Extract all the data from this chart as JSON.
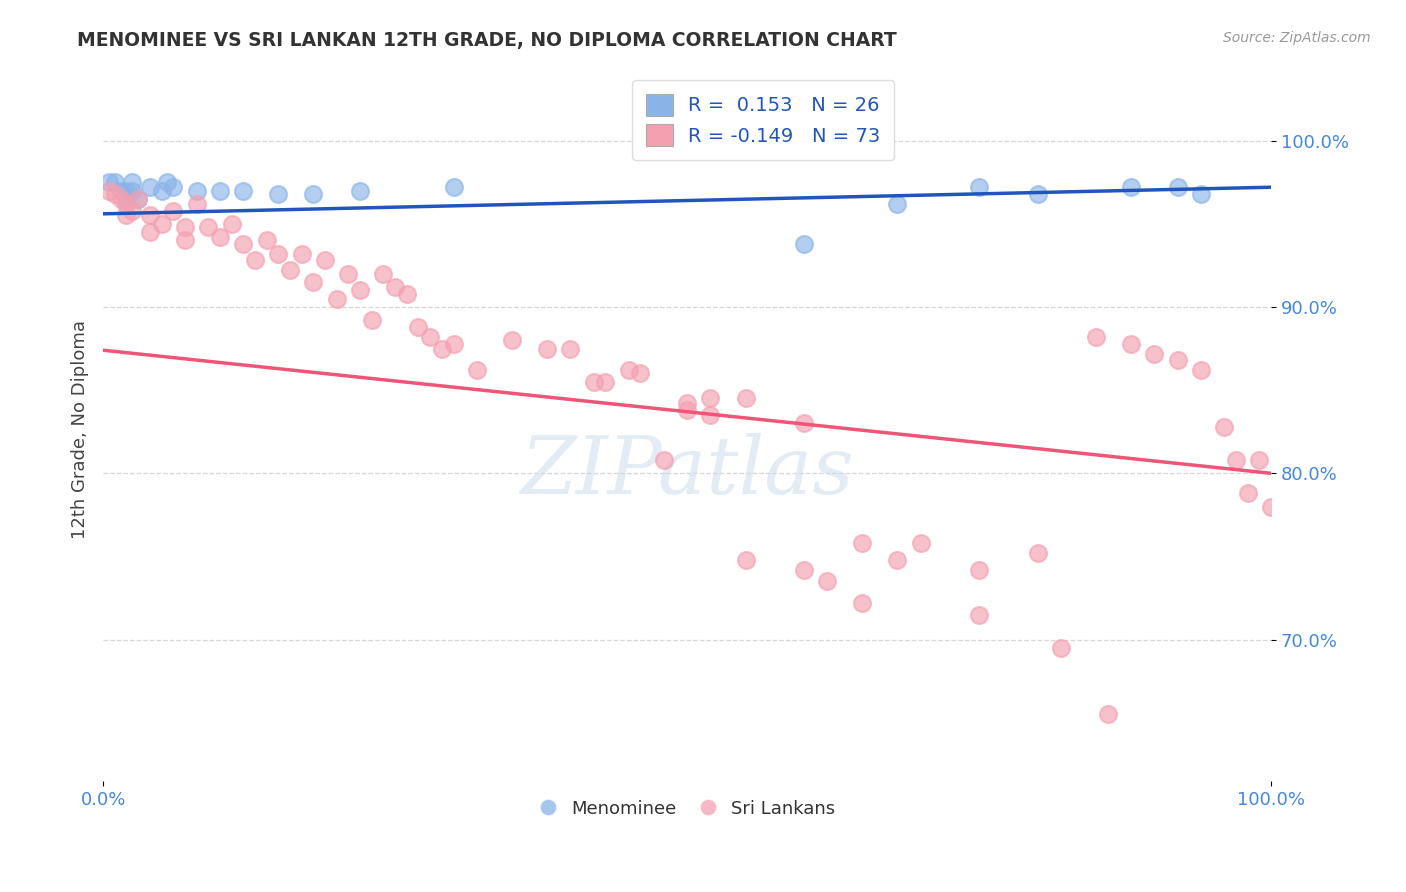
{
  "title": "MENOMINEE VS SRI LANKAN 12TH GRADE, NO DIPLOMA CORRELATION CHART",
  "source_text": "Source: ZipAtlas.com",
  "ylabel": "12th Grade, No Diploma",
  "xlim": [
    0.0,
    1.0
  ],
  "ylim": [
    0.615,
    1.038
  ],
  "yticks": [
    0.7,
    0.8,
    0.9,
    1.0
  ],
  "ytick_labels": [
    "70.0%",
    "80.0%",
    "90.0%",
    "100.0%"
  ],
  "xticks": [
    0.0,
    1.0
  ],
  "xtick_labels": [
    "0.0%",
    "100.0%"
  ],
  "legend_label_blue": "Menominee",
  "legend_label_pink": "Sri Lankans",
  "legend_r_blue": "R =  0.153",
  "legend_n_blue": "N = 26",
  "legend_r_pink": "R = -0.149",
  "legend_n_pink": "N = 73",
  "blue_color": "#8AB4E8",
  "pink_color": "#F4A0B0",
  "blue_line_color": "#2255BB",
  "pink_line_color": "#EE5577",
  "watermark": "ZIPatlas",
  "blue_line_x0": 0.0,
  "blue_line_y0": 0.956,
  "blue_line_x1": 1.0,
  "blue_line_y1": 0.972,
  "pink_line_x0": 0.0,
  "pink_line_y0": 0.874,
  "pink_line_x1": 1.0,
  "pink_line_y1": 0.8,
  "menominee_x": [
    0.005,
    0.01,
    0.015,
    0.02,
    0.025,
    0.02,
    0.025,
    0.03,
    0.04,
    0.05,
    0.055,
    0.06,
    0.08,
    0.1,
    0.12,
    0.15,
    0.18,
    0.22,
    0.3,
    0.6,
    0.68,
    0.75,
    0.8,
    0.88,
    0.92,
    0.94
  ],
  "menominee_y": [
    0.975,
    0.975,
    0.97,
    0.97,
    0.975,
    0.965,
    0.97,
    0.965,
    0.972,
    0.97,
    0.975,
    0.972,
    0.97,
    0.97,
    0.97,
    0.968,
    0.968,
    0.97,
    0.972,
    0.938,
    0.962,
    0.972,
    0.968,
    0.972,
    0.972,
    0.968
  ],
  "srilankan_x": [
    0.005,
    0.01,
    0.015,
    0.02,
    0.025,
    0.02,
    0.03,
    0.04,
    0.04,
    0.05,
    0.06,
    0.07,
    0.07,
    0.08,
    0.09,
    0.1,
    0.11,
    0.12,
    0.13,
    0.14,
    0.15,
    0.16,
    0.17,
    0.18,
    0.19,
    0.2,
    0.21,
    0.22,
    0.23,
    0.24,
    0.25,
    0.26,
    0.27,
    0.28,
    0.29,
    0.3,
    0.32,
    0.35,
    0.38,
    0.4,
    0.43,
    0.46,
    0.5,
    0.52,
    0.55,
    0.42,
    0.45,
    0.5,
    0.6,
    0.65,
    0.7,
    0.75,
    0.8,
    0.85,
    0.88,
    0.9,
    0.92,
    0.94,
    0.96,
    0.97,
    0.98,
    0.99,
    1.0,
    0.48,
    0.52,
    0.55,
    0.6,
    0.62,
    0.65,
    0.68,
    0.75,
    0.82,
    0.86
  ],
  "srilankan_y": [
    0.97,
    0.968,
    0.965,
    0.962,
    0.958,
    0.955,
    0.965,
    0.955,
    0.945,
    0.95,
    0.958,
    0.948,
    0.94,
    0.962,
    0.948,
    0.942,
    0.95,
    0.938,
    0.928,
    0.94,
    0.932,
    0.922,
    0.932,
    0.915,
    0.928,
    0.905,
    0.92,
    0.91,
    0.892,
    0.92,
    0.912,
    0.908,
    0.888,
    0.882,
    0.875,
    0.878,
    0.862,
    0.88,
    0.875,
    0.875,
    0.855,
    0.86,
    0.842,
    0.835,
    0.845,
    0.855,
    0.862,
    0.838,
    0.83,
    0.758,
    0.758,
    0.742,
    0.752,
    0.882,
    0.878,
    0.872,
    0.868,
    0.862,
    0.828,
    0.808,
    0.788,
    0.808,
    0.78,
    0.808,
    0.845,
    0.748,
    0.742,
    0.735,
    0.722,
    0.748,
    0.715,
    0.695,
    0.655
  ]
}
